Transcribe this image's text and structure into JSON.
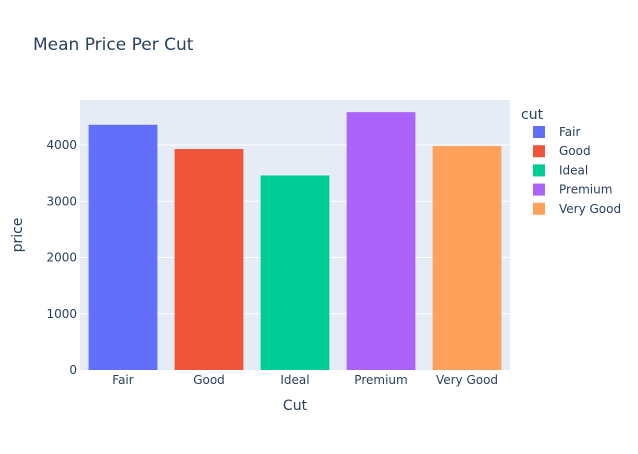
{
  "chart_data": {
    "type": "bar",
    "title": "Mean Price Per Cut",
    "xlabel": "Cut",
    "ylabel": "price",
    "categories": [
      "Fair",
      "Good",
      "Ideal",
      "Premium",
      "Very Good"
    ],
    "values": [
      4359,
      3929,
      3458,
      4584,
      3982
    ],
    "ylim": [
      0,
      4800
    ],
    "yticks": [
      0,
      1000,
      2000,
      3000,
      4000
    ],
    "ytick_labels": [
      "0",
      "1000",
      "2000",
      "3000",
      "4000"
    ],
    "grid": true,
    "legend": {
      "title": "cut",
      "placement": "right",
      "entries": [
        "Fair",
        "Good",
        "Ideal",
        "Premium",
        "Very Good"
      ]
    },
    "colors": [
      "#636efa",
      "#ef553b",
      "#00cc96",
      "#ab63fa",
      "#ffa15a"
    ],
    "plot_background": "#e5ecf6"
  }
}
